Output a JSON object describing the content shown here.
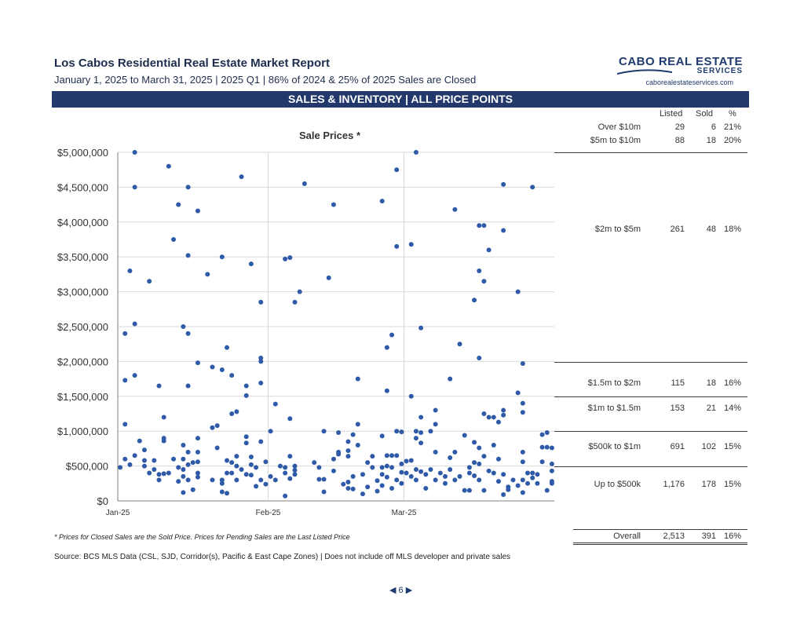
{
  "header": {
    "title": "Los Cabos Residential Real Estate Market Report",
    "subtitle": "January 1, 2025 to March 31, 2025 | 2025 Q1 | 86% of 2024 & 25% of 2025 Sales are Closed"
  },
  "logo": {
    "name": "CABO REAL ESTATE",
    "sub": "SERVICES",
    "url": "caborealestateservices.com",
    "color": "#1f3a6e"
  },
  "banner": {
    "text": "SALES & INVENTORY | ALL PRICE POINTS",
    "color": "#23396b"
  },
  "table": {
    "headers": {
      "listed": "Listed",
      "sold": "Sold",
      "pct": "%"
    },
    "rows": [
      {
        "label": "Over  $10m",
        "listed": "29",
        "sold": "6",
        "pct": "21%"
      },
      {
        "label": "$5m to $10m",
        "listed": "88",
        "sold": "18",
        "pct": "20%"
      },
      {
        "label": "$2m to $5m",
        "listed": "261",
        "sold": "48",
        "pct": "18%"
      },
      {
        "label": "$1.5m to $2m",
        "listed": "115",
        "sold": "18",
        "pct": "16%"
      },
      {
        "label": "$1m to $1.5m",
        "listed": "153",
        "sold": "21",
        "pct": "14%"
      },
      {
        "label": "$500k to $1m",
        "listed": "691",
        "sold": "102",
        "pct": "15%"
      },
      {
        "label": "Up to $500k",
        "listed": "1,176",
        "sold": "178",
        "pct": "15%"
      },
      {
        "label": "Overall",
        "listed": "2,513",
        "sold": "391",
        "pct": "16%"
      }
    ]
  },
  "footnote": "* Prices for Closed Sales are the Sold Price.  Prices for Pending Sales are the Last Listed Price",
  "source": "Source:  BCS MLS Data (CSL, SJD, Corridor(s), Pacific & East Cape Zones) | Does not include off MLS developer and private sales",
  "page": {
    "number": "6",
    "prev_icon": "◀",
    "next_icon": "▶"
  },
  "chart_data": {
    "type": "scatter",
    "title": "Sale Prices *",
    "xlabel": "",
    "ylabel": "",
    "x_ticks": [
      "Jan-25",
      "Feb-25",
      "Mar-25"
    ],
    "y_ticks": [
      "$0",
      "$500,000",
      "$1,000,000",
      "$1,500,000",
      "$2,000,000",
      "$2,500,000",
      "$3,000,000",
      "$3,500,000",
      "$4,000,000",
      "$4,500,000",
      "$5,000,000"
    ],
    "xlim": [
      "2025-01-01",
      "2025-03-31"
    ],
    "ylim": [
      0,
      5000000
    ],
    "grid": true,
    "point_color": "#2e5aa8",
    "points": [
      [
        "2025-01-01",
        480000
      ],
      [
        "2025-01-02",
        2400000
      ],
      [
        "2025-01-02",
        1730000
      ],
      [
        "2025-01-02",
        1100000
      ],
      [
        "2025-01-02",
        600000
      ],
      [
        "2025-01-03",
        3300000
      ],
      [
        "2025-01-03",
        520000
      ],
      [
        "2025-01-04",
        5000000
      ],
      [
        "2025-01-04",
        4500000
      ],
      [
        "2025-01-04",
        2540000
      ],
      [
        "2025-01-04",
        1800000
      ],
      [
        "2025-01-04",
        650000
      ],
      [
        "2025-01-05",
        860000
      ],
      [
        "2025-01-06",
        580000
      ],
      [
        "2025-01-06",
        730000
      ],
      [
        "2025-01-06",
        500000
      ],
      [
        "2025-01-07",
        3150000
      ],
      [
        "2025-01-07",
        400000
      ],
      [
        "2025-01-08",
        580000
      ],
      [
        "2025-01-08",
        450000
      ],
      [
        "2025-01-09",
        1650000
      ],
      [
        "2025-01-09",
        380000
      ],
      [
        "2025-01-09",
        300000
      ],
      [
        "2025-01-10",
        1200000
      ],
      [
        "2025-01-10",
        900000
      ],
      [
        "2025-01-10",
        860000
      ],
      [
        "2025-01-10",
        390000
      ],
      [
        "2025-01-11",
        4800000
      ],
      [
        "2025-01-11",
        400000
      ],
      [
        "2025-01-12",
        3750000
      ],
      [
        "2025-01-12",
        600000
      ],
      [
        "2025-01-13",
        4250000
      ],
      [
        "2025-01-13",
        480000
      ],
      [
        "2025-01-13",
        280000
      ],
      [
        "2025-01-14",
        2500000
      ],
      [
        "2025-01-14",
        800000
      ],
      [
        "2025-01-14",
        600000
      ],
      [
        "2025-01-14",
        450000
      ],
      [
        "2025-01-14",
        350000
      ],
      [
        "2025-01-14",
        120000
      ],
      [
        "2025-01-15",
        4500000
      ],
      [
        "2025-01-15",
        3520000
      ],
      [
        "2025-01-15",
        2400000
      ],
      [
        "2025-01-15",
        1650000
      ],
      [
        "2025-01-15",
        700000
      ],
      [
        "2025-01-15",
        520000
      ],
      [
        "2025-01-15",
        300000
      ],
      [
        "2025-01-16",
        550000
      ],
      [
        "2025-01-16",
        160000
      ],
      [
        "2025-01-17",
        4160000
      ],
      [
        "2025-01-17",
        1980000
      ],
      [
        "2025-01-17",
        900000
      ],
      [
        "2025-01-17",
        700000
      ],
      [
        "2025-01-17",
        560000
      ],
      [
        "2025-01-17",
        400000
      ],
      [
        "2025-01-17",
        340000
      ],
      [
        "2025-01-19",
        3250000
      ],
      [
        "2025-01-20",
        1920000
      ],
      [
        "2025-01-20",
        1050000
      ],
      [
        "2025-01-20",
        300000
      ],
      [
        "2025-01-21",
        1080000
      ],
      [
        "2025-01-21",
        760000
      ],
      [
        "2025-01-22",
        3500000
      ],
      [
        "2025-01-22",
        1880000
      ],
      [
        "2025-01-22",
        300000
      ],
      [
        "2025-01-22",
        250000
      ],
      [
        "2025-01-22",
        130000
      ],
      [
        "2025-01-23",
        2200000
      ],
      [
        "2025-01-23",
        580000
      ],
      [
        "2025-01-23",
        400000
      ],
      [
        "2025-01-23",
        110000
      ],
      [
        "2025-01-24",
        1800000
      ],
      [
        "2025-01-24",
        1250000
      ],
      [
        "2025-01-24",
        550000
      ],
      [
        "2025-01-24",
        400000
      ],
      [
        "2025-01-25",
        1280000
      ],
      [
        "2025-01-25",
        640000
      ],
      [
        "2025-01-25",
        500000
      ],
      [
        "2025-01-25",
        300000
      ],
      [
        "2025-01-26",
        4650000
      ],
      [
        "2025-01-26",
        450000
      ],
      [
        "2025-01-27",
        1650000
      ],
      [
        "2025-01-27",
        1510000
      ],
      [
        "2025-01-27",
        920000
      ],
      [
        "2025-01-27",
        830000
      ],
      [
        "2025-01-27",
        380000
      ],
      [
        "2025-01-28",
        3400000
      ],
      [
        "2025-01-28",
        630000
      ],
      [
        "2025-01-28",
        520000
      ],
      [
        "2025-01-28",
        370000
      ],
      [
        "2025-01-29",
        210000
      ],
      [
        "2025-01-29",
        480000
      ],
      [
        "2025-01-30",
        2850000
      ],
      [
        "2025-01-30",
        2050000
      ],
      [
        "2025-01-30",
        2000000
      ],
      [
        "2025-01-30",
        1690000
      ],
      [
        "2025-01-30",
        850000
      ],
      [
        "2025-01-30",
        300000
      ],
      [
        "2025-01-31",
        560000
      ],
      [
        "2025-01-31",
        240000
      ],
      [
        "2025-02-01",
        1000000
      ],
      [
        "2025-02-01",
        350000
      ],
      [
        "2025-02-02",
        1390000
      ],
      [
        "2025-02-02",
        300000
      ],
      [
        "2025-02-03",
        500000
      ],
      [
        "2025-02-04",
        3470000
      ],
      [
        "2025-02-04",
        480000
      ],
      [
        "2025-02-04",
        400000
      ],
      [
        "2025-02-04",
        70000
      ],
      [
        "2025-02-05",
        3490000
      ],
      [
        "2025-02-05",
        1180000
      ],
      [
        "2025-02-05",
        640000
      ],
      [
        "2025-02-05",
        320000
      ],
      [
        "2025-02-06",
        2850000
      ],
      [
        "2025-02-06",
        500000
      ],
      [
        "2025-02-06",
        440000
      ],
      [
        "2025-02-06",
        380000
      ],
      [
        "2025-02-07",
        3000000
      ],
      [
        "2025-02-08",
        4550000
      ],
      [
        "2025-02-10",
        550000
      ],
      [
        "2025-02-11",
        480000
      ],
      [
        "2025-02-11",
        310000
      ],
      [
        "2025-02-12",
        1000000
      ],
      [
        "2025-02-12",
        310000
      ],
      [
        "2025-02-12",
        130000
      ],
      [
        "2025-02-13",
        3200000
      ],
      [
        "2025-02-14",
        4250000
      ],
      [
        "2025-02-14",
        600000
      ],
      [
        "2025-02-14",
        430000
      ],
      [
        "2025-02-15",
        980000
      ],
      [
        "2025-02-15",
        670000
      ],
      [
        "2025-02-15",
        700000
      ],
      [
        "2025-02-16",
        240000
      ],
      [
        "2025-02-17",
        850000
      ],
      [
        "2025-02-17",
        720000
      ],
      [
        "2025-02-17",
        640000
      ],
      [
        "2025-02-17",
        270000
      ],
      [
        "2025-02-17",
        180000
      ],
      [
        "2025-02-18",
        950000
      ],
      [
        "2025-02-18",
        350000
      ],
      [
        "2025-02-18",
        170000
      ],
      [
        "2025-02-19",
        1750000
      ],
      [
        "2025-02-19",
        1100000
      ],
      [
        "2025-02-19",
        800000
      ],
      [
        "2025-02-20",
        380000
      ],
      [
        "2025-02-20",
        100000
      ],
      [
        "2025-02-21",
        550000
      ],
      [
        "2025-02-21",
        200000
      ],
      [
        "2025-02-22",
        640000
      ],
      [
        "2025-02-22",
        480000
      ],
      [
        "2025-02-23",
        290000
      ],
      [
        "2025-02-23",
        140000
      ],
      [
        "2025-02-24",
        4300000
      ],
      [
        "2025-02-24",
        930000
      ],
      [
        "2025-02-24",
        480000
      ],
      [
        "2025-02-24",
        380000
      ],
      [
        "2025-02-24",
        220000
      ],
      [
        "2025-02-25",
        2200000
      ],
      [
        "2025-02-25",
        1580000
      ],
      [
        "2025-02-25",
        650000
      ],
      [
        "2025-02-25",
        500000
      ],
      [
        "2025-02-25",
        340000
      ],
      [
        "2025-02-26",
        2380000
      ],
      [
        "2025-02-26",
        650000
      ],
      [
        "2025-02-26",
        480000
      ],
      [
        "2025-02-26",
        180000
      ],
      [
        "2025-02-27",
        4750000
      ],
      [
        "2025-02-27",
        3650000
      ],
      [
        "2025-02-27",
        1000000
      ],
      [
        "2025-02-27",
        650000
      ],
      [
        "2025-02-27",
        300000
      ],
      [
        "2025-02-28",
        990000
      ],
      [
        "2025-02-28",
        530000
      ],
      [
        "2025-02-28",
        410000
      ],
      [
        "2025-02-28",
        250000
      ],
      [
        "2025-03-01",
        570000
      ],
      [
        "2025-03-01",
        400000
      ],
      [
        "2025-03-02",
        3680000
      ],
      [
        "2025-03-02",
        1500000
      ],
      [
        "2025-03-02",
        580000
      ],
      [
        "2025-03-02",
        350000
      ],
      [
        "2025-03-03",
        5000000
      ],
      [
        "2025-03-03",
        1000000
      ],
      [
        "2025-03-03",
        900000
      ],
      [
        "2025-03-03",
        450000
      ],
      [
        "2025-03-03",
        300000
      ],
      [
        "2025-03-04",
        2480000
      ],
      [
        "2025-03-04",
        1200000
      ],
      [
        "2025-03-04",
        980000
      ],
      [
        "2025-03-04",
        830000
      ],
      [
        "2025-03-04",
        420000
      ],
      [
        "2025-03-05",
        380000
      ],
      [
        "2025-03-05",
        180000
      ],
      [
        "2025-03-06",
        1000000
      ],
      [
        "2025-03-06",
        450000
      ],
      [
        "2025-03-07",
        1300000
      ],
      [
        "2025-03-07",
        1100000
      ],
      [
        "2025-03-07",
        700000
      ],
      [
        "2025-03-07",
        300000
      ],
      [
        "2025-03-08",
        400000
      ],
      [
        "2025-03-09",
        350000
      ],
      [
        "2025-03-09",
        250000
      ],
      [
        "2025-03-10",
        1750000
      ],
      [
        "2025-03-10",
        620000
      ],
      [
        "2025-03-10",
        450000
      ],
      [
        "2025-03-11",
        4180000
      ],
      [
        "2025-03-11",
        700000
      ],
      [
        "2025-03-11",
        300000
      ],
      [
        "2025-03-12",
        2250000
      ],
      [
        "2025-03-12",
        350000
      ],
      [
        "2025-03-13",
        940000
      ],
      [
        "2025-03-13",
        150000
      ],
      [
        "2025-03-14",
        480000
      ],
      [
        "2025-03-14",
        400000
      ],
      [
        "2025-03-14",
        150000
      ],
      [
        "2025-03-15",
        2880000
      ],
      [
        "2025-03-15",
        840000
      ],
      [
        "2025-03-15",
        550000
      ],
      [
        "2025-03-15",
        360000
      ],
      [
        "2025-03-16",
        3950000
      ],
      [
        "2025-03-16",
        3300000
      ],
      [
        "2025-03-16",
        2050000
      ],
      [
        "2025-03-16",
        760000
      ],
      [
        "2025-03-16",
        530000
      ],
      [
        "2025-03-16",
        300000
      ],
      [
        "2025-03-17",
        3950000
      ],
      [
        "2025-03-17",
        3150000
      ],
      [
        "2025-03-17",
        1250000
      ],
      [
        "2025-03-17",
        640000
      ],
      [
        "2025-03-17",
        150000
      ],
      [
        "2025-03-18",
        3600000
      ],
      [
        "2025-03-18",
        1200000
      ],
      [
        "2025-03-18",
        430000
      ],
      [
        "2025-03-19",
        1200000
      ],
      [
        "2025-03-19",
        800000
      ],
      [
        "2025-03-19",
        400000
      ],
      [
        "2025-03-20",
        1130000
      ],
      [
        "2025-03-20",
        600000
      ],
      [
        "2025-03-20",
        280000
      ],
      [
        "2025-03-21",
        4540000
      ],
      [
        "2025-03-21",
        3880000
      ],
      [
        "2025-03-21",
        1300000
      ],
      [
        "2025-03-21",
        1230000
      ],
      [
        "2025-03-21",
        380000
      ],
      [
        "2025-03-21",
        90000
      ],
      [
        "2025-03-22",
        200000
      ],
      [
        "2025-03-22",
        160000
      ],
      [
        "2025-03-23",
        300000
      ],
      [
        "2025-03-24",
        3000000
      ],
      [
        "2025-03-24",
        1550000
      ],
      [
        "2025-03-24",
        220000
      ],
      [
        "2025-03-25",
        1970000
      ],
      [
        "2025-03-25",
        1400000
      ],
      [
        "2025-03-25",
        1270000
      ],
      [
        "2025-03-25",
        700000
      ],
      [
        "2025-03-25",
        560000
      ],
      [
        "2025-03-25",
        300000
      ],
      [
        "2025-03-25",
        120000
      ],
      [
        "2025-03-26",
        400000
      ],
      [
        "2025-03-26",
        250000
      ],
      [
        "2025-03-27",
        4500000
      ],
      [
        "2025-03-27",
        400000
      ],
      [
        "2025-03-27",
        330000
      ],
      [
        "2025-03-28",
        380000
      ],
      [
        "2025-03-28",
        250000
      ],
      [
        "2025-03-29",
        950000
      ],
      [
        "2025-03-29",
        770000
      ],
      [
        "2025-03-29",
        560000
      ],
      [
        "2025-03-30",
        980000
      ],
      [
        "2025-03-30",
        770000
      ],
      [
        "2025-03-30",
        150000
      ],
      [
        "2025-03-31",
        430000
      ],
      [
        "2025-03-31",
        280000
      ],
      [
        "2025-03-31",
        760000
      ],
      [
        "2025-03-31",
        530000
      ],
      [
        "2025-03-31",
        250000
      ]
    ]
  }
}
